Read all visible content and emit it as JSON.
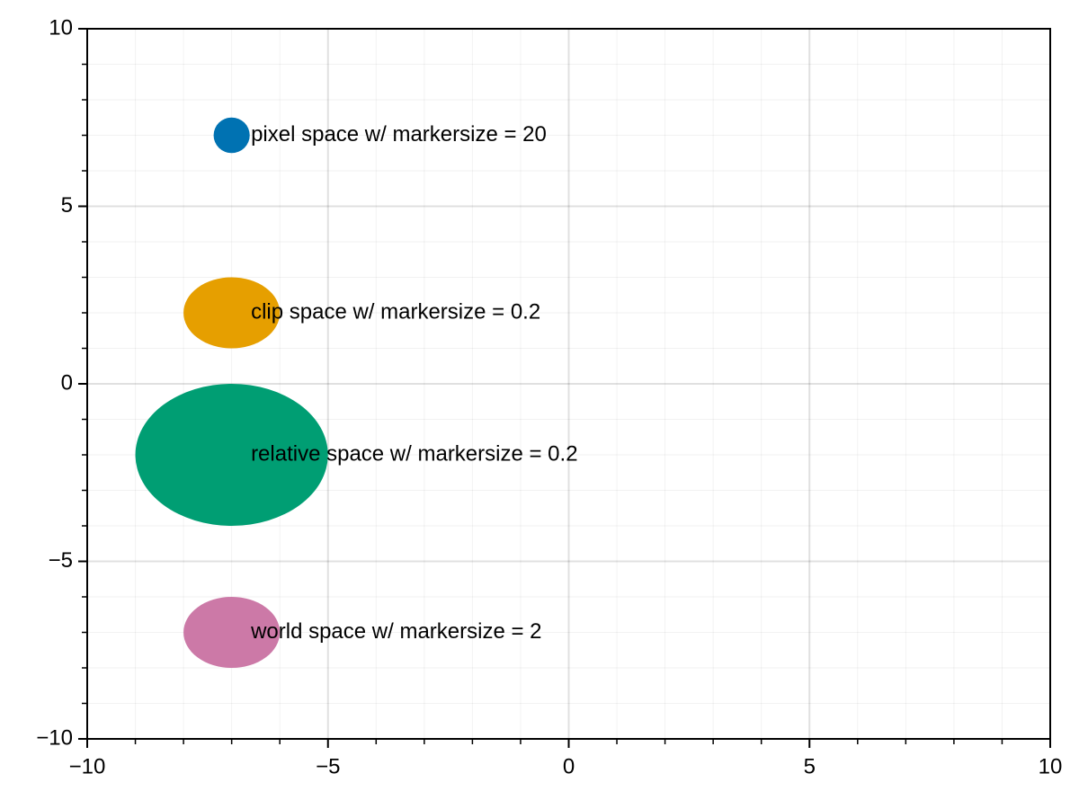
{
  "chart_data": {
    "type": "scatter",
    "xlim": [
      -10,
      10
    ],
    "ylim": [
      -10,
      10
    ],
    "xticks": [
      {
        "value": -10,
        "label": "−10"
      },
      {
        "value": -5,
        "label": "−5"
      },
      0,
      5,
      10
    ],
    "yticks": [
      {
        "value": -10,
        "label": "−10"
      },
      {
        "value": -5,
        "label": "−5"
      },
      0,
      5,
      10
    ],
    "xminorticks": [
      -9,
      -8,
      -7,
      -6,
      -4,
      -3,
      -2,
      -1,
      1,
      2,
      3,
      4,
      6,
      7,
      8,
      9
    ],
    "yminorticks": [
      -9,
      -8,
      -7,
      -6,
      -4,
      -3,
      -2,
      -1,
      1,
      2,
      3,
      4,
      6,
      7,
      8,
      9
    ],
    "grid": true,
    "series": [
      {
        "color": "#0072b2",
        "x": [
          -7
        ],
        "values": [
          7
        ],
        "width": [
          0.75
        ],
        "height": [
          1.0
        ]
      },
      {
        "color": "#e69f00",
        "x": [
          -7
        ],
        "values": [
          2
        ],
        "width": [
          2.0
        ],
        "height": [
          2.0
        ]
      },
      {
        "color": "#009e73",
        "x": [
          -7
        ],
        "values": [
          -2
        ],
        "width": [
          4.0
        ],
        "height": [
          4.0
        ]
      },
      {
        "color": "#cc79a7",
        "x": [
          -7
        ],
        "values": [
          -7
        ],
        "width": [
          2.0
        ],
        "height": [
          2.0
        ]
      }
    ],
    "annotations": [
      {
        "text": "pixel space w/ markersize = 20",
        "x": -6.6,
        "y": 7
      },
      {
        "text": "clip space w/ markersize = 0.2",
        "x": -6.6,
        "y": 2
      },
      {
        "text": "relative space w/ markersize = 0.2",
        "x": -6.6,
        "y": -2
      },
      {
        "text": "world space w/ markersize = 2",
        "x": -6.6,
        "y": -7
      }
    ]
  }
}
